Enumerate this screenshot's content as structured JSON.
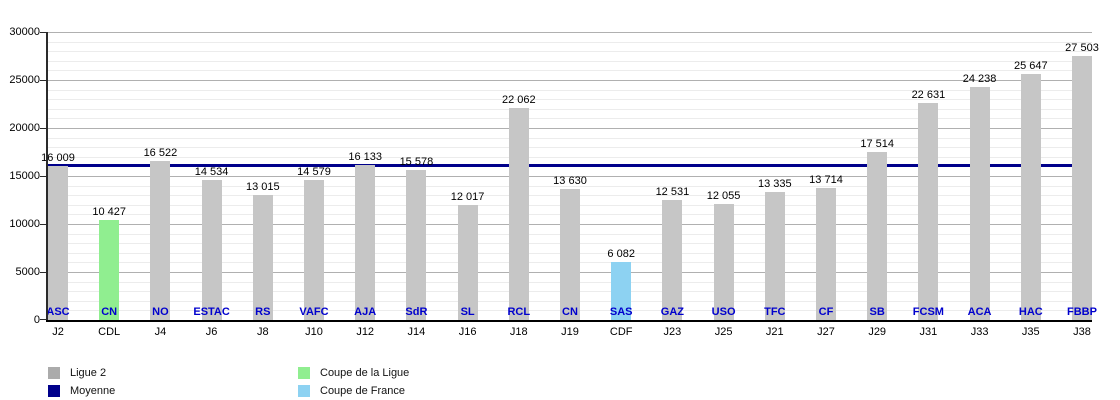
{
  "chart_data": {
    "type": "bar",
    "title": "",
    "xlabel": "",
    "ylabel": "",
    "ylim": [
      0,
      30000
    ],
    "y_major_step": 5000,
    "y_minor_step": 1000,
    "y_tick_labels": [
      "0",
      "5000",
      "10000",
      "15000",
      "20000",
      "25000",
      "30000"
    ],
    "grid": true,
    "legend_position": "bottom",
    "category_label_color": "#0000CD",
    "average_line": {
      "name": "Moyenne",
      "value": 16179,
      "color": "#00008B"
    },
    "series_colors": {
      "ligue2": "#C6C6C6",
      "coupe_de_la_ligue": "#90EE90",
      "coupe_de_france": "#8DD2F2"
    },
    "bars": [
      {
        "opponent": "ASC",
        "day": "J2",
        "value": 16009,
        "value_label": "16 009",
        "series": "ligue2"
      },
      {
        "opponent": "CN",
        "day": "CDL",
        "value": 10427,
        "value_label": "10 427",
        "series": "coupe_de_la_ligue"
      },
      {
        "opponent": "NO",
        "day": "J4",
        "value": 16522,
        "value_label": "16 522",
        "series": "ligue2"
      },
      {
        "opponent": "ESTAC",
        "day": "J6",
        "value": 14534,
        "value_label": "14 534",
        "series": "ligue2"
      },
      {
        "opponent": "RS",
        "day": "J8",
        "value": 13015,
        "value_label": "13 015",
        "series": "ligue2"
      },
      {
        "opponent": "VAFC",
        "day": "J10",
        "value": 14579,
        "value_label": "14 579",
        "series": "ligue2"
      },
      {
        "opponent": "AJA",
        "day": "J12",
        "value": 16133,
        "value_label": "16 133",
        "series": "ligue2"
      },
      {
        "opponent": "SdR",
        "day": "J14",
        "value": 15578,
        "value_label": "15 578",
        "series": "ligue2"
      },
      {
        "opponent": "SL",
        "day": "J16",
        "value": 12017,
        "value_label": "12 017",
        "series": "ligue2"
      },
      {
        "opponent": "RCL",
        "day": "J18",
        "value": 22062,
        "value_label": "22 062",
        "series": "ligue2"
      },
      {
        "opponent": "CN",
        "day": "J19",
        "value": 13630,
        "value_label": "13 630",
        "series": "ligue2"
      },
      {
        "opponent": "SAS",
        "day": "CDF",
        "value": 6082,
        "value_label": "6 082",
        "series": "coupe_de_france"
      },
      {
        "opponent": "GAZ",
        "day": "J23",
        "value": 12531,
        "value_label": "12 531",
        "series": "ligue2"
      },
      {
        "opponent": "USO",
        "day": "J25",
        "value": 12055,
        "value_label": "12 055",
        "series": "ligue2"
      },
      {
        "opponent": "TFC",
        "day": "J21",
        "value": 13335,
        "value_label": "13 335",
        "series": "ligue2"
      },
      {
        "opponent": "CF",
        "day": "J27",
        "value": 13714,
        "value_label": "13 714",
        "series": "ligue2"
      },
      {
        "opponent": "SB",
        "day": "J29",
        "value": 17514,
        "value_label": "17 514",
        "series": "ligue2"
      },
      {
        "opponent": "FCSM",
        "day": "J31",
        "value": 22631,
        "value_label": "22 631",
        "series": "ligue2"
      },
      {
        "opponent": "ACA",
        "day": "J33",
        "value": 24238,
        "value_label": "24 238",
        "series": "ligue2"
      },
      {
        "opponent": "HAC",
        "day": "J35",
        "value": 25647,
        "value_label": "25 647",
        "series": "ligue2"
      },
      {
        "opponent": "FBBP",
        "day": "J38",
        "value": 27503,
        "value_label": "27 503",
        "series": "ligue2"
      }
    ]
  },
  "legend": {
    "items": [
      {
        "label": "Ligue 2",
        "color": "#ABABAB"
      },
      {
        "label": "Moyenne",
        "color": "#00008B"
      },
      {
        "label": "Coupe de la Ligue",
        "color": "#90EE90"
      },
      {
        "label": "Coupe de France",
        "color": "#8DD2F2"
      }
    ]
  }
}
